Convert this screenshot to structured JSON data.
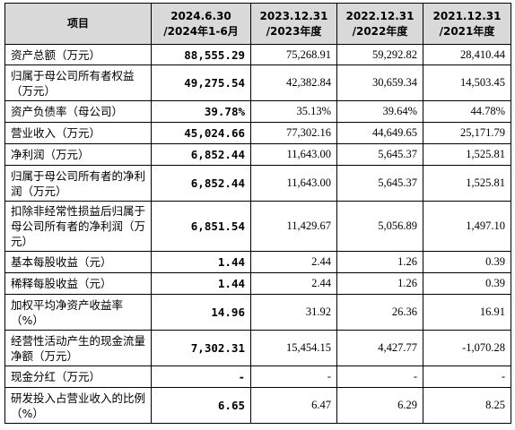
{
  "headers": {
    "item": "项目",
    "col1_line1": "2024.6.30",
    "col1_line2": "/2024年1-6月",
    "col2_line1": "2023.12.31",
    "col2_line2": "/2023年度",
    "col3_line1": "2022.12.31",
    "col3_line2": "/2022年度",
    "col4_line1": "2021.12.31",
    "col4_line2": "/2021年度"
  },
  "rows": [
    {
      "label": "资产总额（万元）",
      "v1": "88,555.29",
      "v2": "75,268.91",
      "v3": "59,292.82",
      "v4": "28,410.44"
    },
    {
      "label": "归属于母公司所有者权益（万元）",
      "v1": "49,275.54",
      "v2": "42,382.84",
      "v3": "30,659.34",
      "v4": "14,503.45"
    },
    {
      "label": "资产负债率（母公司）",
      "v1": "39.78%",
      "v2": "35.13%",
      "v3": "39.64%",
      "v4": "44.78%"
    },
    {
      "label": "营业收入（万元）",
      "v1": "45,024.66",
      "v2": "77,302.16",
      "v3": "44,649.65",
      "v4": "25,171.79"
    },
    {
      "label": "净利润（万元）",
      "v1": "6,852.44",
      "v2": "11,643.00",
      "v3": "5,645.37",
      "v4": "1,525.81"
    },
    {
      "label": "归属于母公司所有者的净利润（万元）",
      "v1": "6,852.44",
      "v2": "11,643.00",
      "v3": "5,645.37",
      "v4": "1,525.81"
    },
    {
      "label": "扣除非经常性损益后归属于母公司所有者的净利润（万元）",
      "v1": "6,851.54",
      "v2": "11,429.67",
      "v3": "5,056.89",
      "v4": "1,497.10"
    },
    {
      "label": "基本每股收益（元）",
      "v1": "1.44",
      "v2": "2.44",
      "v3": "1.26",
      "v4": "0.39"
    },
    {
      "label": "稀释每股收益（元）",
      "v1": "1.44",
      "v2": "2.44",
      "v3": "1.26",
      "v4": "0.39"
    },
    {
      "label": "加权平均净资产收益率（%）",
      "v1": "14.96",
      "v2": "31.92",
      "v3": "26.36",
      "v4": "16.91"
    },
    {
      "label": "经营性活动产生的现金流量净额（万元）",
      "v1": "7,302.31",
      "v2": "15,454.15",
      "v3": "4,427.77",
      "v4": "-1,070.28"
    },
    {
      "label": "现金分红（万元）",
      "v1": "-",
      "v2": "-",
      "v3": "-",
      "v4": "-"
    },
    {
      "label": "研发投入占营业收入的比例（%）",
      "v1": "6.65",
      "v2": "6.47",
      "v3": "6.29",
      "v4": "8.25"
    }
  ]
}
